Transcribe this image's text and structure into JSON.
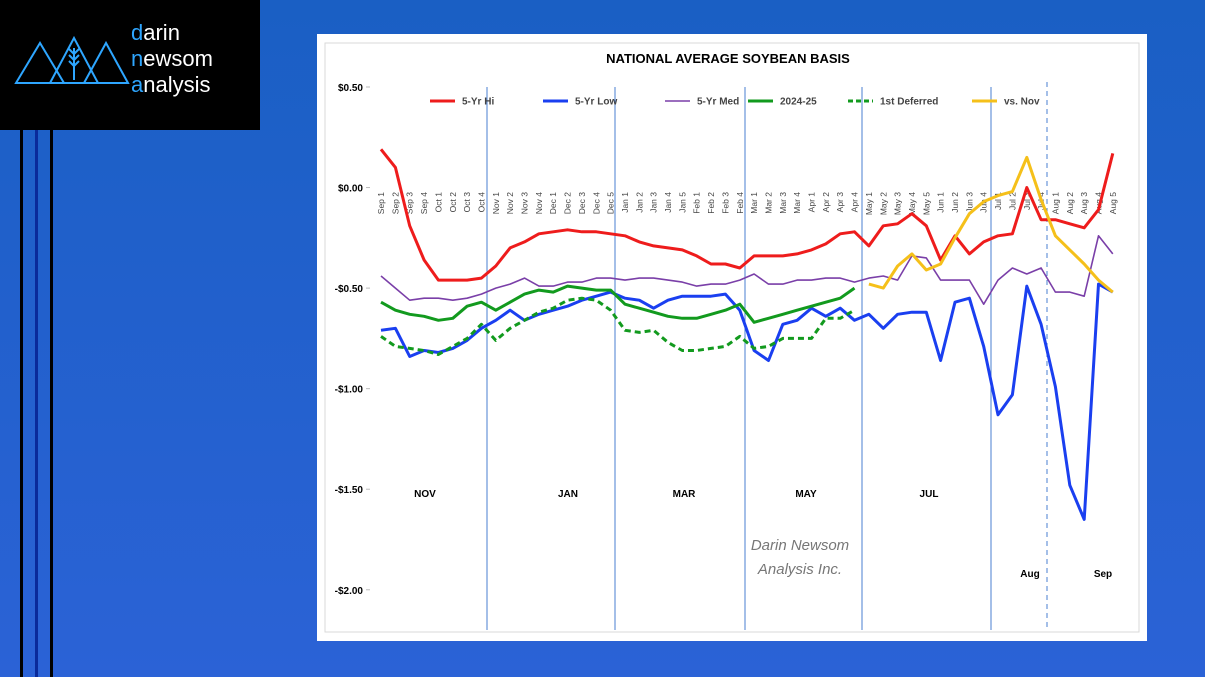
{
  "brand": [
    "darin",
    "newsom",
    "analysis"
  ],
  "chart_data": {
    "type": "line",
    "title": "NATIONAL AVERAGE SOYBEAN BASIS",
    "categories": [
      "Sep 1",
      "Sep 2",
      "Sep 3",
      "Sep 4",
      "Oct 1",
      "Oct 2",
      "Oct 3",
      "Oct 4",
      "Nov 1",
      "Nov 2",
      "Nov 3",
      "Nov 4",
      "Dec 1",
      "Dec 2",
      "Dec 3",
      "Dec 4",
      "Dec 5",
      "Jan 1",
      "Jan 2",
      "Jan 3",
      "Jan 4",
      "Jan 5",
      "Feb 1",
      "Feb 2",
      "Feb 3",
      "Feb 4",
      "Mar 1",
      "Mar 2",
      "Mar 3",
      "Mar 4",
      "Apr 1",
      "Apr 2",
      "Apr 3",
      "Apr 4",
      "May 1",
      "May 2",
      "May 3",
      "May 4",
      "May 5",
      "Jun 1",
      "Jun 2",
      "Jun 3",
      "Jun 4",
      "Jul 1",
      "Jul 2",
      "Jul 3",
      "Jul 4",
      "Aug 1",
      "Aug 2",
      "Aug 3",
      "Aug 4",
      "Aug 5"
    ],
    "ylim": [
      -2.2,
      0.5
    ],
    "yticks": [
      {
        "value": 0.5,
        "label": "$0.50"
      },
      {
        "value": 0,
        "label": "$0.00"
      },
      {
        "value": -0.5,
        "label": "-$0.50"
      },
      {
        "value": -1,
        "label": "-$1.00"
      },
      {
        "value": -1.5,
        "label": "-$1.50"
      },
      {
        "value": -2,
        "label": "-$2.00"
      }
    ],
    "grid": false,
    "legend": "top",
    "period_labels": [
      "NOV",
      "JAN",
      "MAR",
      "MAY",
      "JUL",
      "Aug",
      "Sep"
    ],
    "watermark": [
      "Darin Newsom",
      "Analysis Inc."
    ],
    "series": [
      {
        "name": "5-Yr Hi",
        "color": "#ee1c1c",
        "style": "solid",
        "values": [
          0.19,
          0.1,
          -0.19,
          -0.36,
          -0.46,
          -0.46,
          -0.46,
          -0.45,
          -0.39,
          -0.3,
          -0.27,
          -0.23,
          -0.22,
          -0.21,
          -0.22,
          -0.22,
          -0.23,
          -0.24,
          -0.27,
          -0.29,
          -0.3,
          -0.31,
          -0.34,
          -0.38,
          -0.38,
          -0.4,
          -0.34,
          -0.34,
          -0.34,
          -0.33,
          -0.31,
          -0.28,
          -0.23,
          -0.22,
          -0.29,
          -0.19,
          -0.18,
          -0.13,
          -0.19,
          -0.36,
          -0.24,
          -0.33,
          -0.27,
          -0.24,
          -0.23,
          0.0,
          -0.16,
          -0.16,
          -0.18,
          -0.2,
          -0.11,
          0.17
        ]
      },
      {
        "name": "5-Yr Low",
        "color": "#1a3ff0",
        "style": "solid",
        "values": [
          -0.71,
          -0.7,
          -0.84,
          -0.81,
          -0.82,
          -0.8,
          -0.76,
          -0.7,
          -0.66,
          -0.61,
          -0.66,
          -0.63,
          -0.61,
          -0.59,
          -0.56,
          -0.54,
          -0.52,
          -0.55,
          -0.56,
          -0.6,
          -0.56,
          -0.54,
          -0.54,
          -0.54,
          -0.53,
          -0.61,
          -0.81,
          -0.86,
          -0.68,
          -0.66,
          -0.6,
          -0.64,
          -0.6,
          -0.66,
          -0.63,
          -0.7,
          -0.63,
          -0.62,
          -0.62,
          -0.86,
          -0.57,
          -0.55,
          -0.79,
          -1.13,
          -1.03,
          -0.49,
          -0.68,
          -0.99,
          -1.48,
          -1.65,
          -0.48,
          -0.52
        ]
      },
      {
        "name": "5-Yr Med",
        "color": "#7a3fa8",
        "style": "thin",
        "values": [
          -0.44,
          -0.5,
          -0.56,
          -0.55,
          -0.55,
          -0.56,
          -0.55,
          -0.53,
          -0.5,
          -0.48,
          -0.45,
          -0.49,
          -0.49,
          -0.47,
          -0.47,
          -0.45,
          -0.45,
          -0.46,
          -0.45,
          -0.45,
          -0.46,
          -0.47,
          -0.49,
          -0.48,
          -0.48,
          -0.46,
          -0.43,
          -0.48,
          -0.48,
          -0.46,
          -0.46,
          -0.45,
          -0.45,
          -0.47,
          -0.45,
          -0.44,
          -0.46,
          -0.34,
          -0.35,
          -0.46,
          -0.46,
          -0.46,
          -0.58,
          -0.46,
          -0.4,
          -0.43,
          -0.4,
          -0.52,
          -0.52,
          -0.54,
          -0.24,
          -0.33
        ]
      },
      {
        "name": "2024-25",
        "color": "#129a1e",
        "style": "solid",
        "values": [
          -0.57,
          -0.61,
          -0.63,
          -0.64,
          -0.66,
          -0.65,
          -0.59,
          -0.57,
          -0.61,
          -0.57,
          -0.53,
          -0.51,
          -0.52,
          -0.49,
          -0.5,
          -0.51,
          -0.51,
          -0.58,
          -0.6,
          -0.62,
          -0.64,
          -0.65,
          -0.65,
          -0.63,
          -0.61,
          -0.58,
          -0.67,
          -0.65,
          -0.63,
          -0.61,
          -0.59,
          -0.57,
          -0.55,
          -0.5,
          null,
          null,
          null,
          null,
          null,
          null,
          null,
          null,
          null,
          null,
          null,
          null,
          null,
          null,
          null,
          null,
          null,
          null
        ]
      },
      {
        "name": "1st Deferred",
        "color": "#129a1e",
        "style": "dashed",
        "values": [
          -0.74,
          -0.79,
          -0.8,
          -0.81,
          -0.83,
          -0.79,
          -0.75,
          -0.68,
          -0.76,
          -0.7,
          -0.66,
          -0.62,
          -0.6,
          -0.56,
          -0.55,
          -0.56,
          -0.61,
          -0.71,
          -0.72,
          -0.71,
          -0.77,
          -0.81,
          -0.81,
          -0.8,
          -0.79,
          -0.74,
          -0.8,
          -0.79,
          -0.75,
          -0.75,
          -0.75,
          -0.65,
          -0.65,
          -0.61,
          null,
          null,
          null,
          null,
          null,
          null,
          null,
          null,
          null,
          null,
          null,
          null,
          null,
          null,
          null,
          null,
          null,
          null
        ]
      },
      {
        "name": "vs. Nov",
        "color": "#f5c01a",
        "style": "solid",
        "values": [
          null,
          null,
          null,
          null,
          null,
          null,
          null,
          null,
          null,
          null,
          null,
          null,
          null,
          null,
          null,
          null,
          null,
          null,
          null,
          null,
          null,
          null,
          null,
          null,
          null,
          null,
          null,
          null,
          null,
          null,
          null,
          null,
          null,
          null,
          -0.48,
          -0.5,
          -0.39,
          -0.33,
          -0.41,
          -0.38,
          -0.25,
          -0.13,
          -0.07,
          -0.04,
          -0.02,
          0.15,
          -0.06,
          -0.24,
          -0.31,
          -0.38,
          -0.46,
          -0.52
        ]
      }
    ]
  }
}
